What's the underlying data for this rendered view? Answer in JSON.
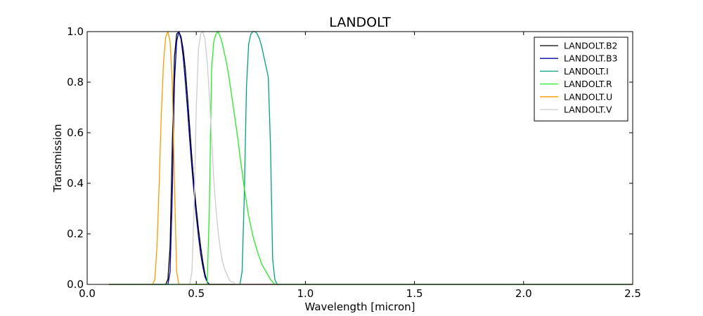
{
  "chart_data": {
    "type": "line",
    "title": "LANDOLT",
    "xlabel": "Wavelength [micron]",
    "ylabel": "Transmission",
    "xlim": [
      0.0,
      2.5
    ],
    "ylim": [
      0.0,
      1.0
    ],
    "xticks": [
      "0.0",
      "0.5",
      "1.0",
      "1.5",
      "2.0",
      "2.5"
    ],
    "yticks": [
      "0.0",
      "0.2",
      "0.4",
      "0.6",
      "0.8",
      "1.0"
    ],
    "grid": false,
    "legend_position": "top-right",
    "series": [
      {
        "name": "LANDOLT.B2",
        "color": "#000000",
        "x": [
          0.1,
          0.36,
          0.37,
          0.38,
          0.39,
          0.4,
          0.41,
          0.42,
          0.43,
          0.44,
          0.45,
          0.46,
          0.47,
          0.48,
          0.49,
          0.5,
          0.51,
          0.52,
          0.53,
          0.54,
          0.55,
          0.56,
          0.88,
          2.5
        ],
        "y": [
          0.0,
          0.0,
          0.02,
          0.15,
          0.55,
          0.9,
          0.99,
          1.0,
          0.98,
          0.93,
          0.85,
          0.74,
          0.62,
          0.5,
          0.39,
          0.3,
          0.22,
          0.15,
          0.09,
          0.04,
          0.01,
          0.0,
          0.0,
          0.0
        ]
      },
      {
        "name": "LANDOLT.B3",
        "color": "#0000aa",
        "x": [
          0.1,
          0.37,
          0.38,
          0.39,
          0.4,
          0.41,
          0.42,
          0.43,
          0.44,
          0.45,
          0.46,
          0.47,
          0.48,
          0.49,
          0.5,
          0.51,
          0.52,
          0.53,
          0.54,
          0.55,
          0.56,
          0.88,
          2.5
        ],
        "y": [
          0.0,
          0.0,
          0.05,
          0.35,
          0.8,
          0.96,
          1.0,
          0.97,
          0.9,
          0.8,
          0.69,
          0.57,
          0.46,
          0.36,
          0.27,
          0.19,
          0.12,
          0.07,
          0.03,
          0.01,
          0.0,
          0.0,
          0.0
        ]
      },
      {
        "name": "LANDOLT.I",
        "color": "#00a27a",
        "x": [
          0.1,
          0.7,
          0.71,
          0.72,
          0.73,
          0.74,
          0.75,
          0.76,
          0.77,
          0.78,
          0.79,
          0.8,
          0.81,
          0.82,
          0.83,
          0.84,
          0.85,
          0.86,
          0.87,
          0.88,
          2.5
        ],
        "y": [
          0.0,
          0.0,
          0.05,
          0.35,
          0.78,
          0.95,
          0.99,
          1.0,
          1.0,
          0.99,
          0.97,
          0.94,
          0.9,
          0.86,
          0.82,
          0.55,
          0.1,
          0.02,
          0.0,
          0.0,
          0.0
        ]
      },
      {
        "name": "LANDOLT.R",
        "color": "#22ee22",
        "x": [
          0.1,
          0.55,
          0.56,
          0.57,
          0.58,
          0.59,
          0.6,
          0.61,
          0.62,
          0.63,
          0.64,
          0.65,
          0.66,
          0.67,
          0.68,
          0.69,
          0.7,
          0.72,
          0.74,
          0.76,
          0.78,
          0.8,
          0.82,
          0.84,
          0.86,
          0.87,
          0.88,
          2.5
        ],
        "y": [
          0.0,
          0.0,
          0.3,
          0.85,
          0.96,
          0.99,
          1.0,
          0.98,
          0.95,
          0.91,
          0.87,
          0.82,
          0.76,
          0.7,
          0.64,
          0.58,
          0.51,
          0.38,
          0.27,
          0.19,
          0.13,
          0.08,
          0.05,
          0.02,
          0.0,
          0.0,
          0.0,
          0.0
        ]
      },
      {
        "name": "LANDOLT.U",
        "color": "#ff9900",
        "x": [
          0.1,
          0.3,
          0.31,
          0.32,
          0.33,
          0.34,
          0.35,
          0.36,
          0.37,
          0.38,
          0.39,
          0.4,
          0.41,
          0.42,
          0.88,
          2.5
        ],
        "y": [
          0.0,
          0.0,
          0.02,
          0.15,
          0.4,
          0.68,
          0.88,
          0.98,
          1.0,
          0.96,
          0.8,
          0.4,
          0.05,
          0.0,
          0.0,
          0.0
        ]
      },
      {
        "name": "LANDOLT.V",
        "color": "#cccccc",
        "x": [
          0.1,
          0.47,
          0.48,
          0.49,
          0.5,
          0.51,
          0.52,
          0.53,
          0.54,
          0.55,
          0.56,
          0.57,
          0.58,
          0.59,
          0.6,
          0.61,
          0.62,
          0.63,
          0.64,
          0.65,
          0.66,
          0.67,
          0.68,
          0.69,
          0.7,
          0.88,
          2.5
        ],
        "y": [
          0.0,
          0.0,
          0.05,
          0.3,
          0.7,
          0.93,
          0.99,
          1.0,
          0.97,
          0.88,
          0.75,
          0.58,
          0.42,
          0.3,
          0.21,
          0.14,
          0.09,
          0.06,
          0.04,
          0.02,
          0.01,
          0.01,
          0.0,
          0.0,
          0.0,
          0.0,
          0.0
        ]
      }
    ]
  }
}
